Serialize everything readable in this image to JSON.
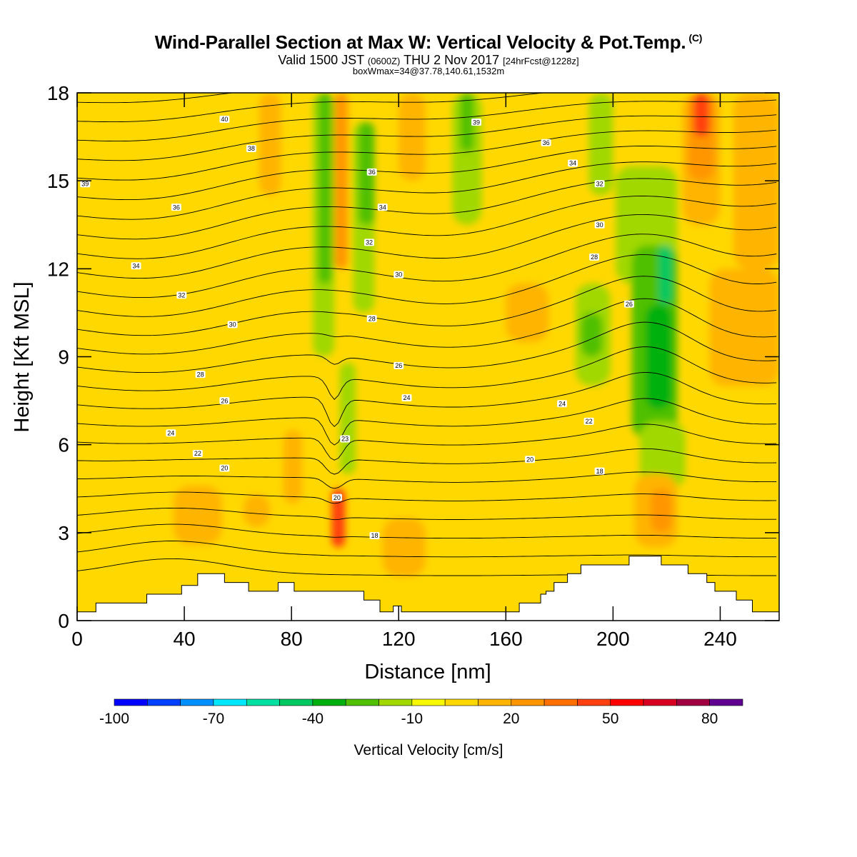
{
  "title": {
    "main": "Wind-Parallel Section at Max W: Vertical Velocity & Pot.Temp.",
    "copyright": "(C)",
    "valid_prefix": "Valid 1500 JST",
    "valid_utc": "(0600Z)",
    "valid_date": "THU 2 Nov 2017",
    "forecast": "[24hrFcst@1228z]",
    "box_info": "boxWmax=34@37.78,140.61,1532m"
  },
  "chart_data": {
    "type": "heatmap",
    "xlabel": "Distance [nm]",
    "ylabel": "Height [Kft MSL]",
    "xlim": [
      0,
      262
    ],
    "ylim": [
      0,
      18
    ],
    "x_ticks": [
      0,
      40,
      80,
      120,
      160,
      200,
      240
    ],
    "y_ticks": [
      0,
      3,
      6,
      9,
      12,
      15,
      18
    ],
    "colorbar": {
      "title": "Vertical Velocity [cm/s]",
      "min": -100,
      "max": 90,
      "step": 10,
      "tick_labels": [
        "-100",
        "-70",
        "-40",
        "-10",
        "20",
        "50",
        "80"
      ],
      "tick_values": [
        -100,
        -70,
        -40,
        -10,
        20,
        50,
        80
      ],
      "colors": [
        "#0000ff",
        "#0040ff",
        "#0090ff",
        "#00e8ff",
        "#00e0a0",
        "#00c860",
        "#00b010",
        "#50c000",
        "#a0d800",
        "#f8f800",
        "#ffd800",
        "#ffb400",
        "#ff9600",
        "#ff7000",
        "#ff4010",
        "#ff0000",
        "#d80020",
        "#a00040",
        "#600090"
      ]
    },
    "background_value": 0,
    "w_cells": [
      {
        "x": [
          0,
          8
        ],
        "y": [
          0,
          18
        ],
        "w": 5
      },
      {
        "x": [
          36,
          54
        ],
        "y": [
          2.6,
          4.6
        ],
        "w": 15
      },
      {
        "x": [
          68,
          76
        ],
        "y": [
          14.5,
          18
        ],
        "w": 15
      },
      {
        "x": [
          62,
          72
        ],
        "y": [
          3.2,
          4.3
        ],
        "w": 12
      },
      {
        "x": [
          77,
          84
        ],
        "y": [
          4.0,
          6.5
        ],
        "w": 12
      },
      {
        "x": [
          88,
          96
        ],
        "y": [
          9.0,
          18
        ],
        "w": -20
      },
      {
        "x": [
          90,
          95
        ],
        "y": [
          11.5,
          18
        ],
        "w": -30
      },
      {
        "x": [
          96,
          101
        ],
        "y": [
          12,
          18
        ],
        "w": 25
      },
      {
        "x": [
          95,
          100
        ],
        "y": [
          2.5,
          4.5
        ],
        "w": 40
      },
      {
        "x": [
          98,
          104
        ],
        "y": [
          5.0,
          8.8
        ],
        "w": -15
      },
      {
        "x": [
          103,
          111
        ],
        "y": [
          10.5,
          17
        ],
        "w": -15
      },
      {
        "x": [
          105,
          111
        ],
        "y": [
          13.5,
          17
        ],
        "w": -25
      },
      {
        "x": [
          114,
          130
        ],
        "y": [
          1.5,
          3.5
        ],
        "w": 15
      },
      {
        "x": [
          120,
          130
        ],
        "y": [
          15,
          18
        ],
        "w": 12
      },
      {
        "x": [
          140,
          151
        ],
        "y": [
          13.5,
          18
        ],
        "w": -15
      },
      {
        "x": [
          143,
          148
        ],
        "y": [
          16,
          18
        ],
        "w": -25
      },
      {
        "x": [
          160,
          176
        ],
        "y": [
          9.5,
          11.5
        ],
        "w": 12
      },
      {
        "x": [
          186,
          199
        ],
        "y": [
          8.0,
          11.5
        ],
        "w": -15
      },
      {
        "x": [
          188,
          196
        ],
        "y": [
          9.0,
          10.5
        ],
        "w": -25
      },
      {
        "x": [
          191,
          200
        ],
        "y": [
          14.5,
          18
        ],
        "w": -15
      },
      {
        "x": [
          201,
          224
        ],
        "y": [
          11.5,
          15.5
        ],
        "w": -18
      },
      {
        "x": [
          207,
          224
        ],
        "y": [
          6.2,
          12.8
        ],
        "w": -25
      },
      {
        "x": [
          210,
          227
        ],
        "y": [
          4.5,
          6.8
        ],
        "w": -15
      },
      {
        "x": [
          212,
          222
        ],
        "y": [
          7.2,
          10.8
        ],
        "w": -35
      },
      {
        "x": [
          217,
          222
        ],
        "y": [
          10.8,
          12.8
        ],
        "w": -45
      },
      {
        "x": [
          208,
          224
        ],
        "y": [
          2.5,
          5.0
        ],
        "w": 15
      },
      {
        "x": [
          214,
          222
        ],
        "y": [
          3.0,
          4.5
        ],
        "w": 25
      },
      {
        "x": [
          226,
          240
        ],
        "y": [
          13.5,
          18
        ],
        "w": 18
      },
      {
        "x": [
          228,
          238
        ],
        "y": [
          15,
          18
        ],
        "w": 28
      },
      {
        "x": [
          230,
          236
        ],
        "y": [
          16.5,
          18
        ],
        "w": 40
      },
      {
        "x": [
          236,
          262
        ],
        "y": [
          8,
          12
        ],
        "w": 12
      },
      {
        "x": [
          245,
          262
        ],
        "y": [
          12,
          18
        ],
        "w": 12
      }
    ],
    "terrain": [
      [
        0,
        0.3
      ],
      [
        7,
        0.3
      ],
      [
        7,
        0.6
      ],
      [
        26,
        0.6
      ],
      [
        26,
        0.9
      ],
      [
        39,
        0.9
      ],
      [
        39,
        1.2
      ],
      [
        45,
        1.2
      ],
      [
        45,
        1.6
      ],
      [
        55,
        1.6
      ],
      [
        55,
        1.3
      ],
      [
        64,
        1.3
      ],
      [
        64,
        1.0
      ],
      [
        75,
        1.0
      ],
      [
        75,
        1.3
      ],
      [
        81,
        1.3
      ],
      [
        81,
        1.0
      ],
      [
        107,
        1.0
      ],
      [
        107,
        0.7
      ],
      [
        113,
        0.7
      ],
      [
        113,
        0.3
      ],
      [
        118,
        0.3
      ],
      [
        118,
        0.5
      ],
      [
        121,
        0.5
      ],
      [
        121,
        0.3
      ],
      [
        165,
        0.3
      ],
      [
        165,
        0.6
      ],
      [
        173,
        0.6
      ],
      [
        173,
        0.9
      ],
      [
        175,
        0.9
      ],
      [
        175,
        1.0
      ],
      [
        178,
        1.0
      ],
      [
        178,
        1.3
      ],
      [
        183,
        1.3
      ],
      [
        183,
        1.6
      ],
      [
        188,
        1.6
      ],
      [
        188,
        1.9
      ],
      [
        206,
        1.9
      ],
      [
        206,
        2.2
      ],
      [
        218,
        2.2
      ],
      [
        218,
        1.9
      ],
      [
        228,
        1.9
      ],
      [
        228,
        1.6
      ],
      [
        235,
        1.6
      ],
      [
        235,
        1.3
      ],
      [
        238,
        1.3
      ],
      [
        238,
        1.0
      ],
      [
        246,
        1.0
      ],
      [
        246,
        0.7
      ],
      [
        252,
        0.7
      ],
      [
        252,
        0.3
      ],
      [
        262,
        0.3
      ]
    ],
    "isentrope_levels": [
      14,
      15,
      16,
      17,
      18,
      19,
      20,
      21,
      22,
      23,
      24,
      25,
      26,
      27,
      28,
      29,
      30,
      31,
      32,
      33,
      34,
      35,
      36,
      37,
      38,
      39,
      40,
      41,
      42
    ],
    "contour_labels": [
      {
        "text": "40",
        "x": 55,
        "y": 17.1
      },
      {
        "text": "38",
        "x": 65,
        "y": 16.1
      },
      {
        "text": "39",
        "x": 3,
        "y": 14.9
      },
      {
        "text": "36",
        "x": 37,
        "y": 14.1
      },
      {
        "text": "34",
        "x": 22,
        "y": 12.1
      },
      {
        "text": "32",
        "x": 39,
        "y": 11.1
      },
      {
        "text": "30",
        "x": 58,
        "y": 10.1
      },
      {
        "text": "28",
        "x": 46,
        "y": 8.4
      },
      {
        "text": "26",
        "x": 55,
        "y": 7.5
      },
      {
        "text": "24",
        "x": 35,
        "y": 6.4
      },
      {
        "text": "22",
        "x": 45,
        "y": 5.7
      },
      {
        "text": "20",
        "x": 55,
        "y": 5.2
      },
      {
        "text": "36",
        "x": 110,
        "y": 15.3
      },
      {
        "text": "34",
        "x": 114,
        "y": 14.1
      },
      {
        "text": "32",
        "x": 109,
        "y": 12.9
      },
      {
        "text": "30",
        "x": 120,
        "y": 11.8
      },
      {
        "text": "28",
        "x": 110,
        "y": 10.3
      },
      {
        "text": "26",
        "x": 120,
        "y": 8.7
      },
      {
        "text": "24",
        "x": 123,
        "y": 7.6
      },
      {
        "text": "23",
        "x": 100,
        "y": 6.2
      },
      {
        "text": "20",
        "x": 97,
        "y": 4.2
      },
      {
        "text": "18",
        "x": 111,
        "y": 2.9
      },
      {
        "text": "39",
        "x": 149,
        "y": 17.0
      },
      {
        "text": "36",
        "x": 175,
        "y": 16.3
      },
      {
        "text": "34",
        "x": 185,
        "y": 15.6
      },
      {
        "text": "32",
        "x": 195,
        "y": 14.9
      },
      {
        "text": "30",
        "x": 195,
        "y": 13.5
      },
      {
        "text": "28",
        "x": 193,
        "y": 12.4
      },
      {
        "text": "26",
        "x": 206,
        "y": 10.8
      },
      {
        "text": "24",
        "x": 181,
        "y": 7.4
      },
      {
        "text": "22",
        "x": 191,
        "y": 6.8
      },
      {
        "text": "20",
        "x": 169,
        "y": 5.5
      },
      {
        "text": "18",
        "x": 195,
        "y": 5.1
      }
    ]
  }
}
